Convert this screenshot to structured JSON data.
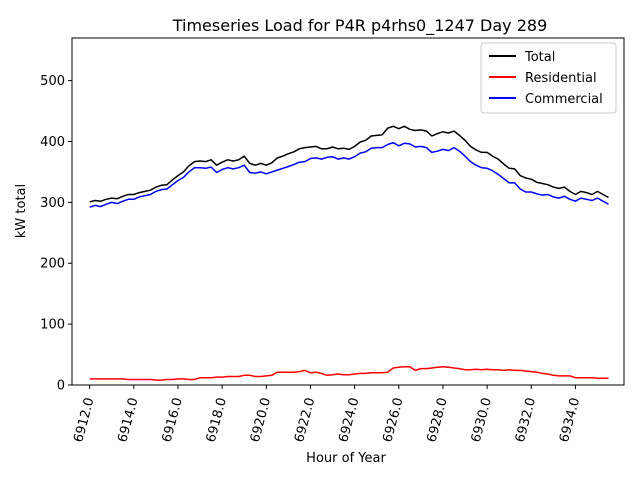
{
  "chart_data": {
    "type": "line",
    "title": "Timeseries Load for P4R p4rhs0_1247  Day 289",
    "xlabel": "Hour of Year",
    "ylabel": "kW total",
    "xlim": [
      6911.2,
      6936.2
    ],
    "ylim": [
      0,
      570
    ],
    "x_ticks": [
      6912,
      6914,
      6916,
      6918,
      6920,
      6922,
      6924,
      6926,
      6928,
      6930,
      6932,
      6934
    ],
    "x_tick_labels": [
      "6912.0",
      "6914.0",
      "6916.0",
      "6918.0",
      "6920.0",
      "6922.0",
      "6924.0",
      "6926.0",
      "6928.0",
      "6930.0",
      "6932.0",
      "6934.0"
    ],
    "y_ticks": [
      0,
      100,
      200,
      300,
      400,
      500
    ],
    "y_tick_labels": [
      "0",
      "100",
      "200",
      "300",
      "400",
      "500"
    ],
    "legend_position": "top-right",
    "grid": false,
    "x": [
      6912.0,
      6912.25,
      6912.5,
      6912.75,
      6913.0,
      6913.25,
      6913.5,
      6913.75,
      6914.0,
      6914.25,
      6914.5,
      6914.75,
      6915.0,
      6915.25,
      6915.5,
      6915.75,
      6916.0,
      6916.25,
      6916.5,
      6916.75,
      6917.0,
      6917.25,
      6917.5,
      6917.75,
      6918.0,
      6918.25,
      6918.5,
      6918.75,
      6919.0,
      6919.25,
      6919.5,
      6919.75,
      6920.0,
      6920.25,
      6920.5,
      6920.75,
      6921.0,
      6921.25,
      6921.5,
      6921.75,
      6922.0,
      6922.25,
      6922.5,
      6922.75,
      6923.0,
      6923.25,
      6923.5,
      6923.75,
      6924.0,
      6924.25,
      6924.5,
      6924.75,
      6925.0,
      6925.25,
      6925.5,
      6925.75,
      6926.0,
      6926.25,
      6926.5,
      6926.75,
      6927.0,
      6927.25,
      6927.5,
      6927.75,
      6928.0,
      6928.25,
      6928.5,
      6928.75,
      6929.0,
      6929.25,
      6929.5,
      6929.75,
      6930.0,
      6930.25,
      6930.5,
      6930.75,
      6931.0,
      6931.25,
      6931.5,
      6931.75,
      6932.0,
      6932.25,
      6932.5,
      6932.75,
      6933.0,
      6933.25,
      6933.5,
      6933.75,
      6934.0,
      6934.25,
      6934.5,
      6934.75,
      6935.0,
      6935.25,
      6935.5
    ],
    "series": [
      {
        "name": "Total",
        "color": "#000000",
        "values": [
          301,
          303,
          302,
          305,
          307,
          306,
          310,
          313,
          313,
          316,
          318,
          320,
          325,
          328,
          329,
          337,
          344,
          350,
          360,
          367,
          368,
          367,
          370,
          361,
          366,
          370,
          368,
          370,
          376,
          364,
          361,
          364,
          361,
          365,
          373,
          376,
          380,
          383,
          388,
          390,
          391,
          392,
          388,
          388,
          391,
          388,
          389,
          387,
          392,
          399,
          402,
          409,
          410,
          411,
          422,
          425,
          421,
          425,
          420,
          418,
          419,
          417,
          409,
          413,
          416,
          414,
          417,
          410,
          402,
          392,
          386,
          382,
          382,
          376,
          371,
          363,
          356,
          355,
          344,
          340,
          338,
          333,
          331,
          329,
          325,
          323,
          325,
          318,
          313,
          318,
          316,
          313,
          318,
          313,
          308
        ]
      },
      {
        "name": "Residential",
        "color": "#ff0000",
        "values": [
          10,
          10,
          10,
          10,
          10,
          10,
          10,
          9,
          9,
          9,
          9,
          9,
          8,
          8,
          9,
          9,
          10,
          10,
          9,
          9,
          12,
          12,
          12,
          13,
          13,
          14,
          14,
          14,
          16,
          16,
          14,
          14,
          15,
          16,
          21,
          21,
          21,
          21,
          22,
          24,
          20,
          21,
          19,
          16,
          17,
          18,
          17,
          17,
          18,
          19,
          19,
          20,
          20,
          20,
          21,
          28,
          29,
          30,
          30,
          24,
          27,
          27,
          28,
          29,
          30,
          29,
          28,
          27,
          25,
          25,
          26,
          25,
          26,
          25,
          25,
          24,
          25,
          24,
          24,
          23,
          22,
          21,
          19,
          18,
          16,
          15,
          15,
          15,
          12,
          12,
          12,
          12,
          11,
          11,
          11
        ]
      },
      {
        "name": "Commercial",
        "color": "#0000ff",
        "values": [
          292,
          295,
          293,
          297,
          300,
          298,
          302,
          305,
          305,
          309,
          311,
          313,
          318,
          321,
          322,
          329,
          336,
          341,
          350,
          357,
          357,
          356,
          358,
          349,
          354,
          357,
          355,
          357,
          361,
          349,
          348,
          350,
          347,
          350,
          353,
          356,
          359,
          362,
          366,
          367,
          372,
          373,
          371,
          374,
          375,
          371,
          373,
          371,
          375,
          381,
          383,
          389,
          390,
          390,
          395,
          398,
          393,
          397,
          396,
          391,
          392,
          390,
          382,
          384,
          387,
          385,
          390,
          384,
          376,
          367,
          361,
          357,
          356,
          352,
          346,
          339,
          332,
          332,
          322,
          317,
          317,
          314,
          312,
          313,
          309,
          307,
          310,
          305,
          302,
          307,
          305,
          303,
          307,
          302,
          297
        ]
      }
    ]
  }
}
